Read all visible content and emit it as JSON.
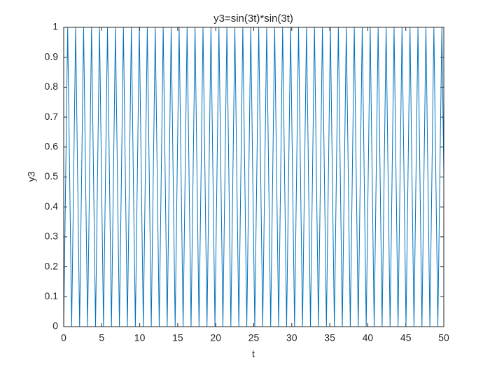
{
  "chart_data": {
    "type": "line",
    "title": "y3=sin(3t)*sin(3t)",
    "x_label": "t",
    "y_label": "y3",
    "x": [
      0,
      0.524,
      1.047,
      1.571,
      2.094,
      2.618,
      3.142,
      3.665,
      4.189,
      4.712,
      5.236,
      5.76,
      6.283,
      6.807,
      7.33,
      7.854,
      8.378,
      8.901,
      9.425,
      9.948,
      10.472,
      10.996,
      11.519,
      12.043,
      12.566,
      13.09,
      13.614,
      14.137,
      14.661,
      15.184,
      15.708,
      16.232,
      16.755,
      17.279,
      17.802,
      18.326,
      18.85,
      19.373,
      19.897,
      20.42,
      20.944,
      21.468,
      21.991,
      22.515,
      23.038,
      23.562,
      24.086,
      24.609,
      25.133,
      25.656,
      26.18,
      26.704,
      27.227,
      27.751,
      28.274,
      28.798,
      29.322,
      29.845,
      30.369,
      30.892,
      31.416,
      31.94,
      32.463,
      32.987,
      33.51,
      34.034,
      34.558,
      35.081,
      35.605,
      36.128,
      36.652,
      37.176,
      37.699,
      38.223,
      38.746,
      39.27,
      39.794,
      40.317,
      40.841,
      41.364,
      41.888,
      42.412,
      42.935,
      43.459,
      43.982,
      44.506,
      45.029,
      45.553,
      46.077,
      46.6,
      47.124,
      47.648,
      48.171,
      48.695,
      49.218,
      49.742,
      50
    ],
    "values": [
      0,
      1,
      0,
      1,
      0,
      1,
      0,
      1,
      0,
      1,
      0,
      1,
      0,
      1,
      0,
      1,
      0,
      1,
      0,
      1,
      0,
      1,
      0,
      1,
      0,
      1,
      0,
      1,
      0,
      1,
      0,
      1,
      0,
      1,
      0,
      1,
      0,
      1,
      0,
      1,
      0,
      1,
      0,
      1,
      0,
      1,
      0,
      1,
      0,
      1,
      0,
      1,
      0,
      1,
      0,
      1,
      0,
      1,
      0,
      1,
      0,
      1,
      0,
      1,
      0,
      1,
      0,
      1,
      0,
      1,
      0,
      1,
      0,
      1,
      0,
      1,
      0,
      1,
      0,
      1,
      0,
      1,
      0,
      1,
      0,
      1,
      0,
      1,
      0,
      1,
      0,
      1,
      0,
      1,
      0,
      1,
      0.51
    ],
    "color": "#0072bd",
    "xlim": [
      0,
      50
    ],
    "xticks": [
      0,
      5,
      10,
      15,
      20,
      25,
      30,
      35,
      40,
      45,
      50
    ],
    "ylim": [
      0,
      1
    ],
    "yticks": [
      0,
      0.1,
      0.2,
      0.3,
      0.4,
      0.5,
      0.6,
      0.7,
      0.8,
      0.9,
      1
    ],
    "grid": false
  }
}
